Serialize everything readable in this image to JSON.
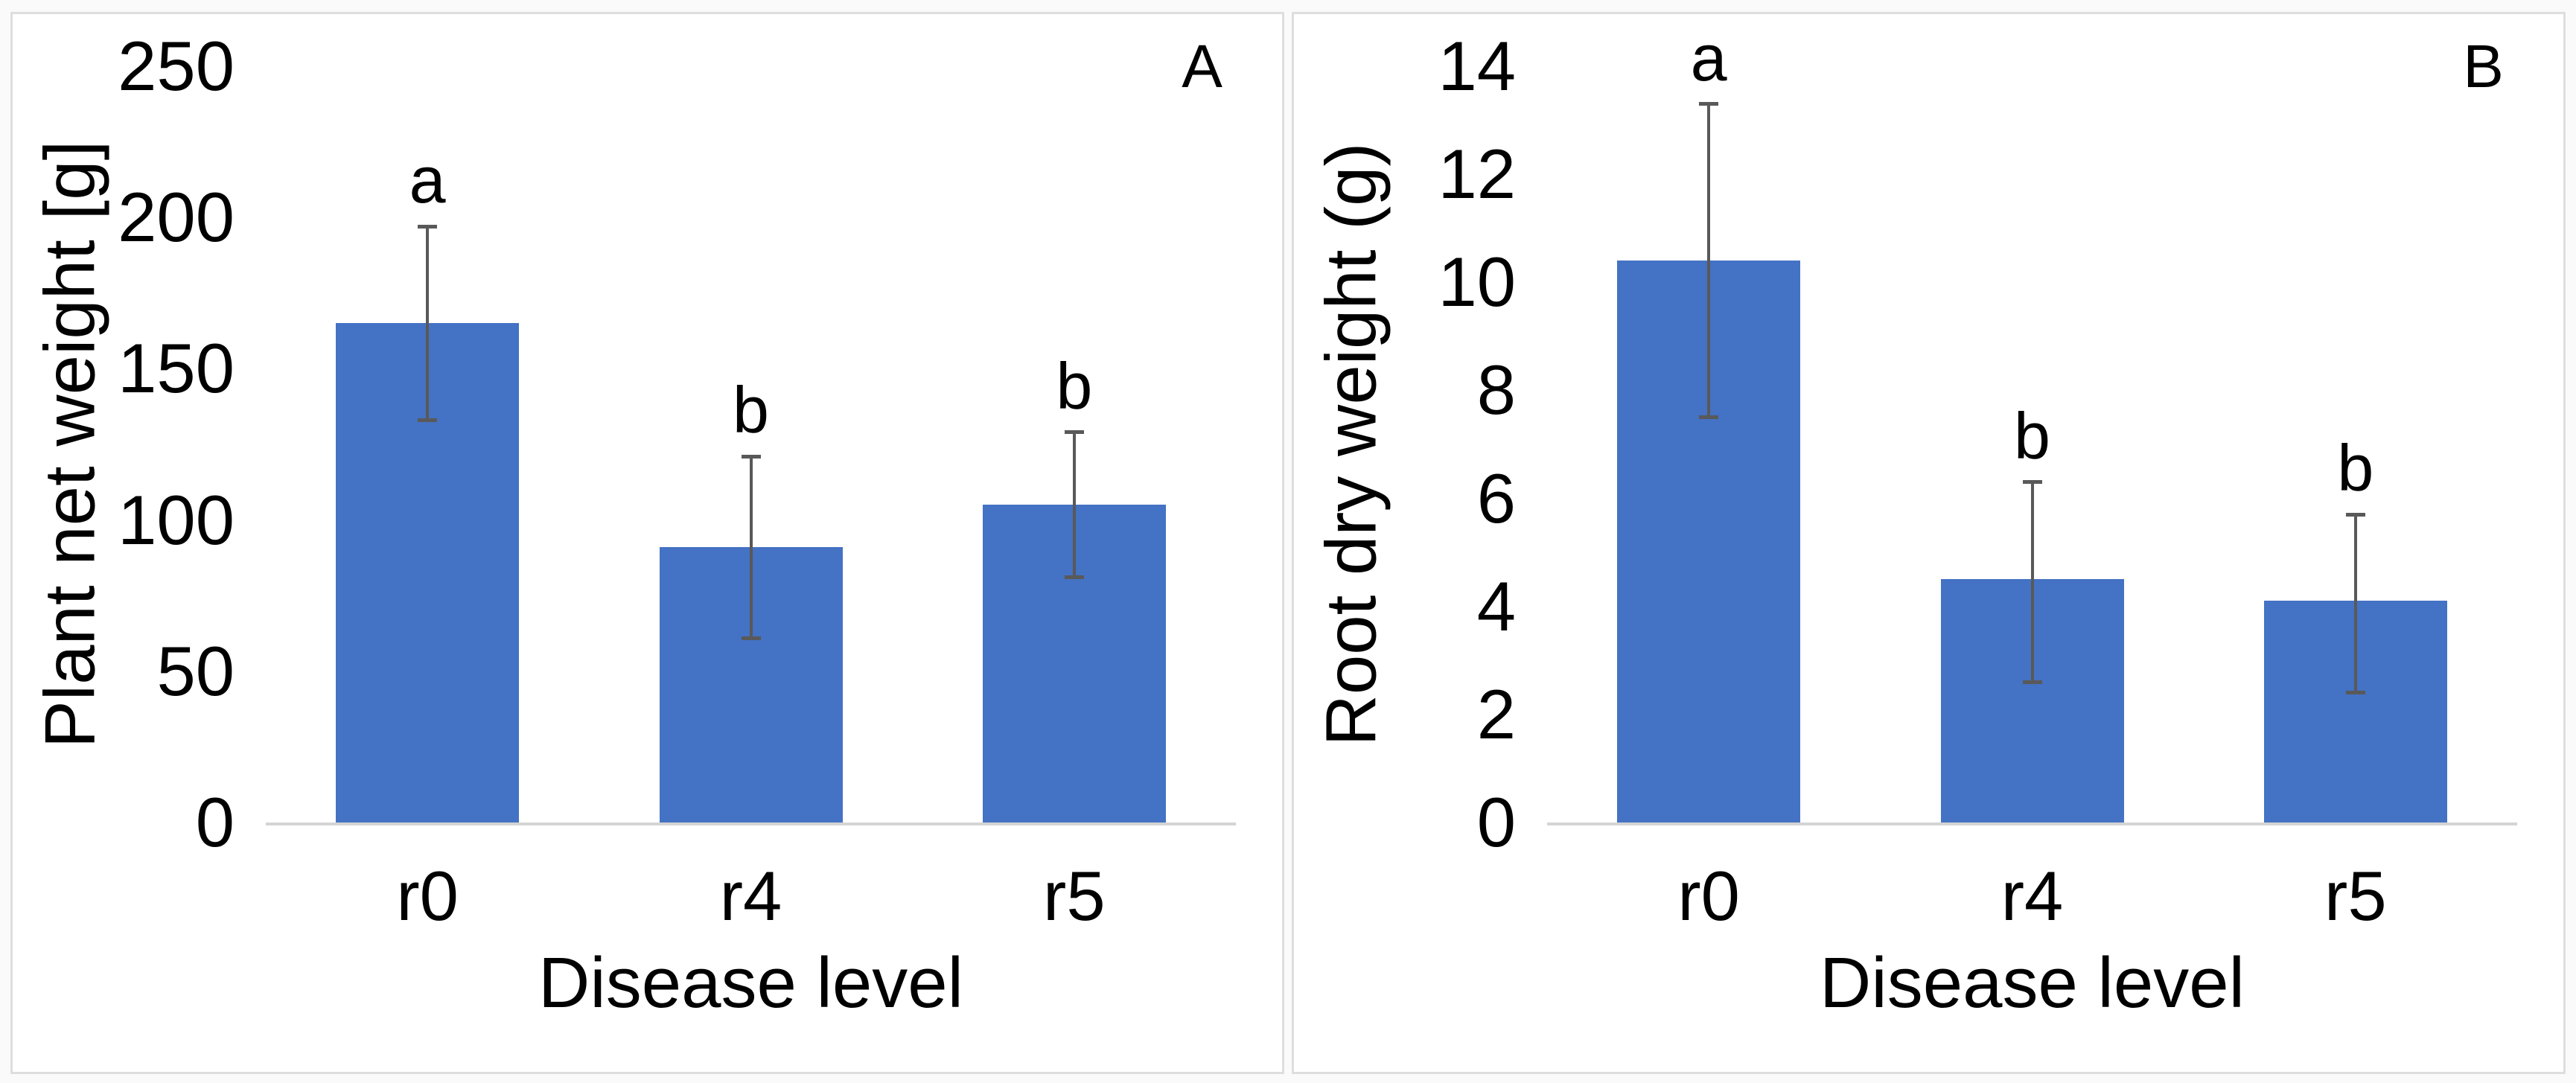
{
  "figure": {
    "background_color": "#fafafa",
    "panel_border_color": "#dedede",
    "axis_line_color": "#d4d4d4"
  },
  "chart_data": [
    {
      "type": "bar",
      "panel_letter": "A",
      "title": "",
      "categories": [
        "r0",
        "r4",
        "r5"
      ],
      "values": [
        165,
        91,
        105
      ],
      "error_low": [
        133,
        61,
        81
      ],
      "error_high": [
        197,
        121,
        129
      ],
      "sig_letters": [
        "a",
        "b",
        "b"
      ],
      "ylabel": "Plant net weight [g]",
      "xlabel": "Disease level",
      "ylim": [
        0,
        250
      ],
      "yticks": [
        0,
        50,
        100,
        150,
        200,
        250
      ],
      "grid": false,
      "legend": "none",
      "bar_color": "#4472C4",
      "error_color": "#595959"
    },
    {
      "type": "bar",
      "panel_letter": "B",
      "title": "",
      "categories": [
        "r0",
        "r4",
        "r5"
      ],
      "values": [
        10.4,
        4.5,
        4.1
      ],
      "error_low": [
        7.5,
        2.6,
        2.4
      ],
      "error_high": [
        13.3,
        6.3,
        5.7
      ],
      "sig_letters": [
        "a",
        "b",
        "b"
      ],
      "ylabel": "Root dry weight (g)",
      "xlabel": "Disease level",
      "ylim": [
        0,
        14
      ],
      "yticks": [
        0,
        2,
        4,
        6,
        8,
        10,
        12,
        14
      ],
      "grid": false,
      "legend": "none",
      "bar_color": "#4472C4",
      "error_color": "#595959"
    }
  ]
}
